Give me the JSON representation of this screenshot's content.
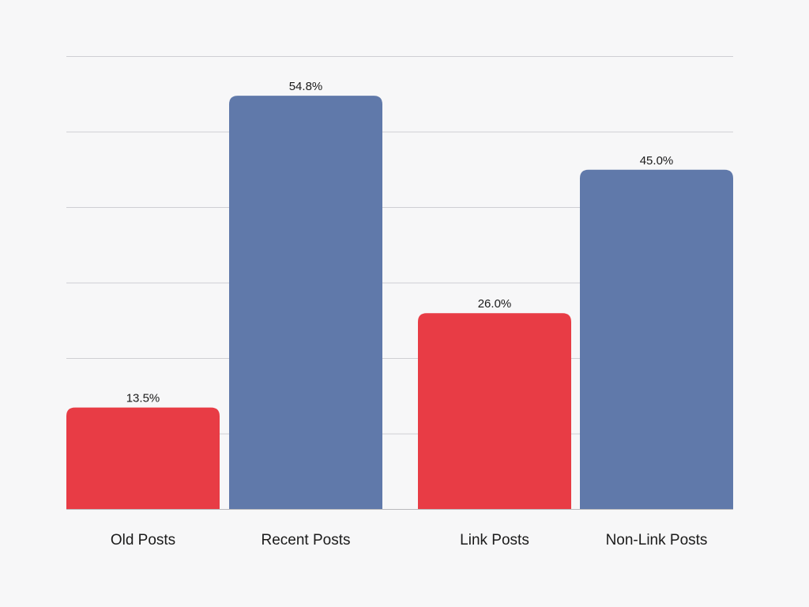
{
  "chart_data": {
    "type": "bar",
    "categories": [
      "Old Posts",
      "Recent Posts",
      "Link Posts",
      "Non-Link Posts"
    ],
    "values": [
      13.5,
      54.8,
      26.0,
      45.0
    ],
    "value_labels": [
      "13.5%",
      "54.8%",
      "26.0%",
      "45.0%"
    ],
    "bar_colors": [
      "#e83c45",
      "#6079aa",
      "#e83c45",
      "#6079aa"
    ],
    "title": "",
    "xlabel": "",
    "ylabel": "",
    "ylim": [
      0,
      60
    ],
    "grid": true,
    "legend": "none"
  },
  "colors": {
    "background": "#f7f7f8",
    "red": "#e83c45",
    "blue": "#6079aa"
  }
}
